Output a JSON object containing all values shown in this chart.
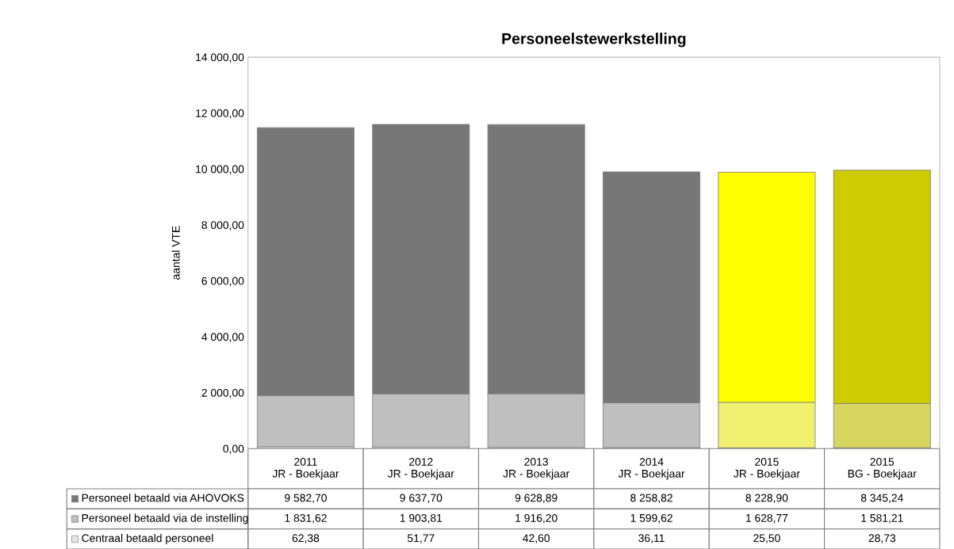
{
  "chart_data": {
    "type": "bar",
    "title": "Personeelstewerkstelling",
    "ylabel": "aantal VTE",
    "stacked": true,
    "legend": "bottom",
    "grid": false,
    "categories": [
      "2011\nJR - Boekjaar",
      "2012\nJR - Boekjaar",
      "2013\nJR - Boekjaar",
      "2014\nJR - Boekjaar",
      "2015\nJR - Boekjaar",
      "2015\nBG - Boekjaar"
    ],
    "ylim": [
      0,
      14000
    ],
    "yticks": [
      {
        "value": 0,
        "label": "0,00"
      },
      {
        "value": 2000,
        "label": "2 000,00"
      },
      {
        "value": 4000,
        "label": "4 000,00"
      },
      {
        "value": 6000,
        "label": "6 000,00"
      },
      {
        "value": 8000,
        "label": "8 000,00"
      },
      {
        "value": 10000,
        "label": "10 000,00"
      },
      {
        "value": 12000,
        "label": "12 000,00"
      },
      {
        "value": 14000,
        "label": "14 000,00"
      }
    ],
    "series": [
      {
        "name": "Centraal betaald personeel",
        "color": "#e6e6e6",
        "colors": [
          "#e6e6e6",
          "#e6e6e6",
          "#e6e6e6",
          "#e6e6e6",
          "#f5f5a0",
          "#e0e090"
        ],
        "values": [
          62.38,
          51.77,
          42.6,
          36.11,
          25.5,
          28.73
        ],
        "value_labels": [
          "62,38",
          "51,77",
          "42,60",
          "36,11",
          "25,50",
          "28,73"
        ]
      },
      {
        "name": "Personeel betaald via de instelling",
        "color": "#bfbfbf",
        "colors": [
          "#bfbfbf",
          "#bfbfbf",
          "#bfbfbf",
          "#bfbfbf",
          "#f0f070",
          "#d6d660"
        ],
        "values": [
          1831.62,
          1903.81,
          1916.2,
          1599.62,
          1628.77,
          1581.21
        ],
        "value_labels": [
          "1 831,62",
          "1 903,81",
          "1 916,20",
          "1 599,62",
          "1 628,77",
          "1 581,21"
        ]
      },
      {
        "name": "Personeel betaald via AHOVOKS",
        "color": "#777777",
        "colors": [
          "#777777",
          "#777777",
          "#777777",
          "#777777",
          "#ffff00",
          "#cccc00"
        ],
        "values": [
          9582.7,
          9637.7,
          9628.89,
          8258.82,
          8228.9,
          8345.24
        ],
        "value_labels": [
          "9 582,70",
          "9 637,70",
          "9 628,89",
          "8 258,82",
          "8 228,90",
          "8 345,24"
        ]
      }
    ]
  }
}
